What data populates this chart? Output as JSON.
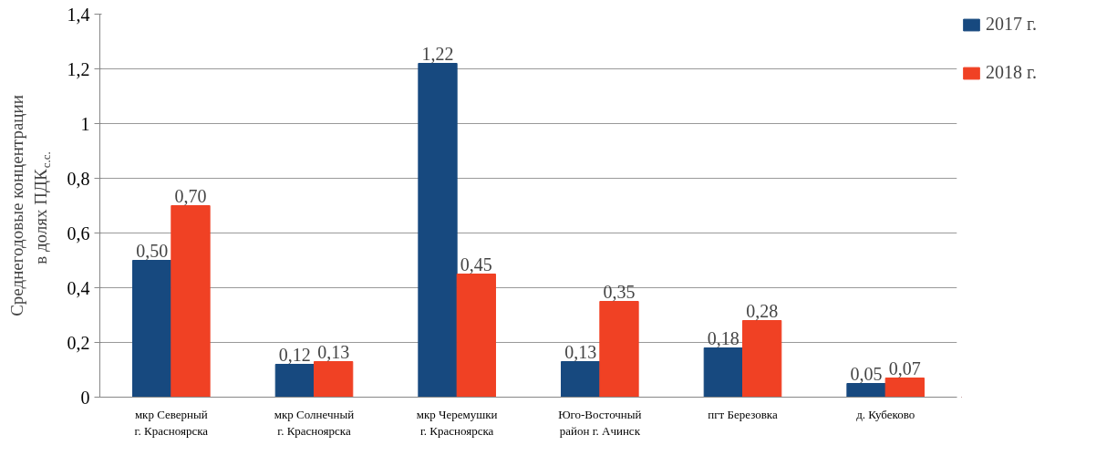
{
  "chart_data": {
    "type": "bar",
    "ylabel": "Среднегодовые концентрации\nв долях ПДК$_{с.с.}$",
    "categories": [
      "мкр Северный\nг. Красноярска",
      "мкр Солнечный\nг. Красноярска",
      "мкр Черемушки\nг. Красноярска",
      "Юго-Восточный\nрайон г. Ачинск",
      "пгт Березовка",
      "д. Кубеково"
    ],
    "series": [
      {
        "name": "2017 г.",
        "color": "#17497f",
        "values": [
          0.5,
          0.12,
          1.22,
          0.13,
          0.18,
          0.05
        ],
        "value_labels": [
          "0,50",
          "0,12",
          "1,22",
          "0,13",
          "0,18",
          "0,05"
        ]
      },
      {
        "name": "2018 г.",
        "color": "#f04124",
        "values": [
          0.7,
          0.13,
          0.45,
          0.35,
          0.28,
          0.07
        ],
        "value_labels": [
          "0,70",
          "0,13",
          "0,45",
          "0,35",
          "0,28",
          "0,07"
        ]
      }
    ],
    "ylim": [
      0,
      1.4
    ],
    "yticks": [
      0,
      {
        "value": 0.2,
        "label": "0,2"
      },
      {
        "value": 0.4,
        "label": "0,4"
      },
      {
        "value": 0.6,
        "label": "0,6"
      },
      {
        "value": 0.8,
        "label": "0,8"
      },
      1,
      {
        "value": 1.2,
        "label": "1,2"
      },
      {
        "value": 1.4,
        "label": "1,4"
      }
    ],
    "grid": "y",
    "legend": "top right"
  }
}
